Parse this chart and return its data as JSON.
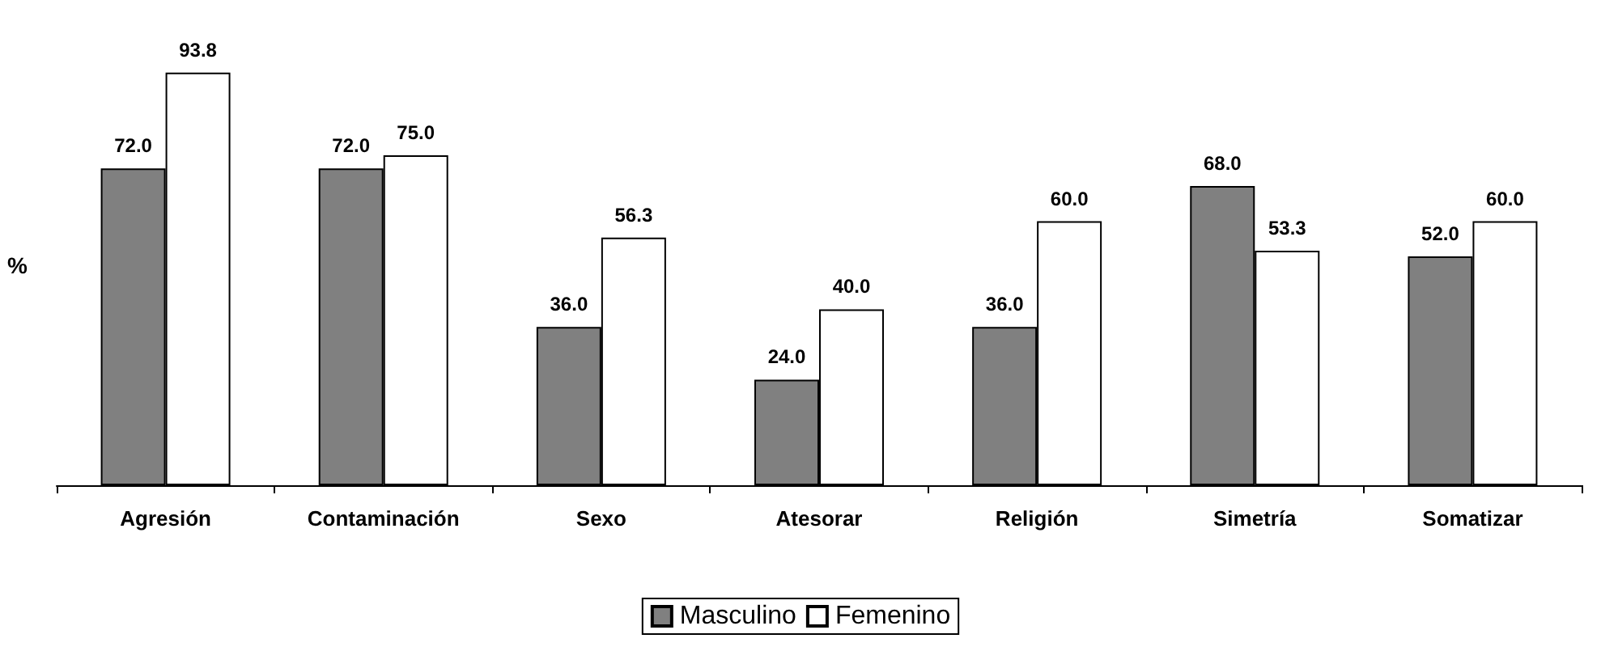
{
  "chart_data": {
    "type": "bar",
    "ylabel": "%",
    "categories": [
      "Agresión",
      "Contaminación",
      "Sexo",
      "Atesorar",
      "Religión",
      "Simetría",
      "Somatizar"
    ],
    "series": [
      {
        "name": "Masculino",
        "color": "#808080",
        "values": [
          72.0,
          72.0,
          36.0,
          24.0,
          36.0,
          68.0,
          52.0
        ],
        "value_labels": [
          "72.0",
          "72.0",
          "36.0",
          "24.0",
          "36.0",
          "68.0",
          "52.0"
        ]
      },
      {
        "name": "Femenino",
        "color": "#ffffff",
        "values": [
          93.8,
          75.0,
          56.3,
          40.0,
          60.0,
          53.3,
          60.0
        ],
        "value_labels": [
          "93.8",
          "75.0",
          "56.3",
          "40.0",
          "60.0",
          "53.3",
          "60.0"
        ]
      }
    ],
    "legend": "bottom",
    "grid": false
  }
}
